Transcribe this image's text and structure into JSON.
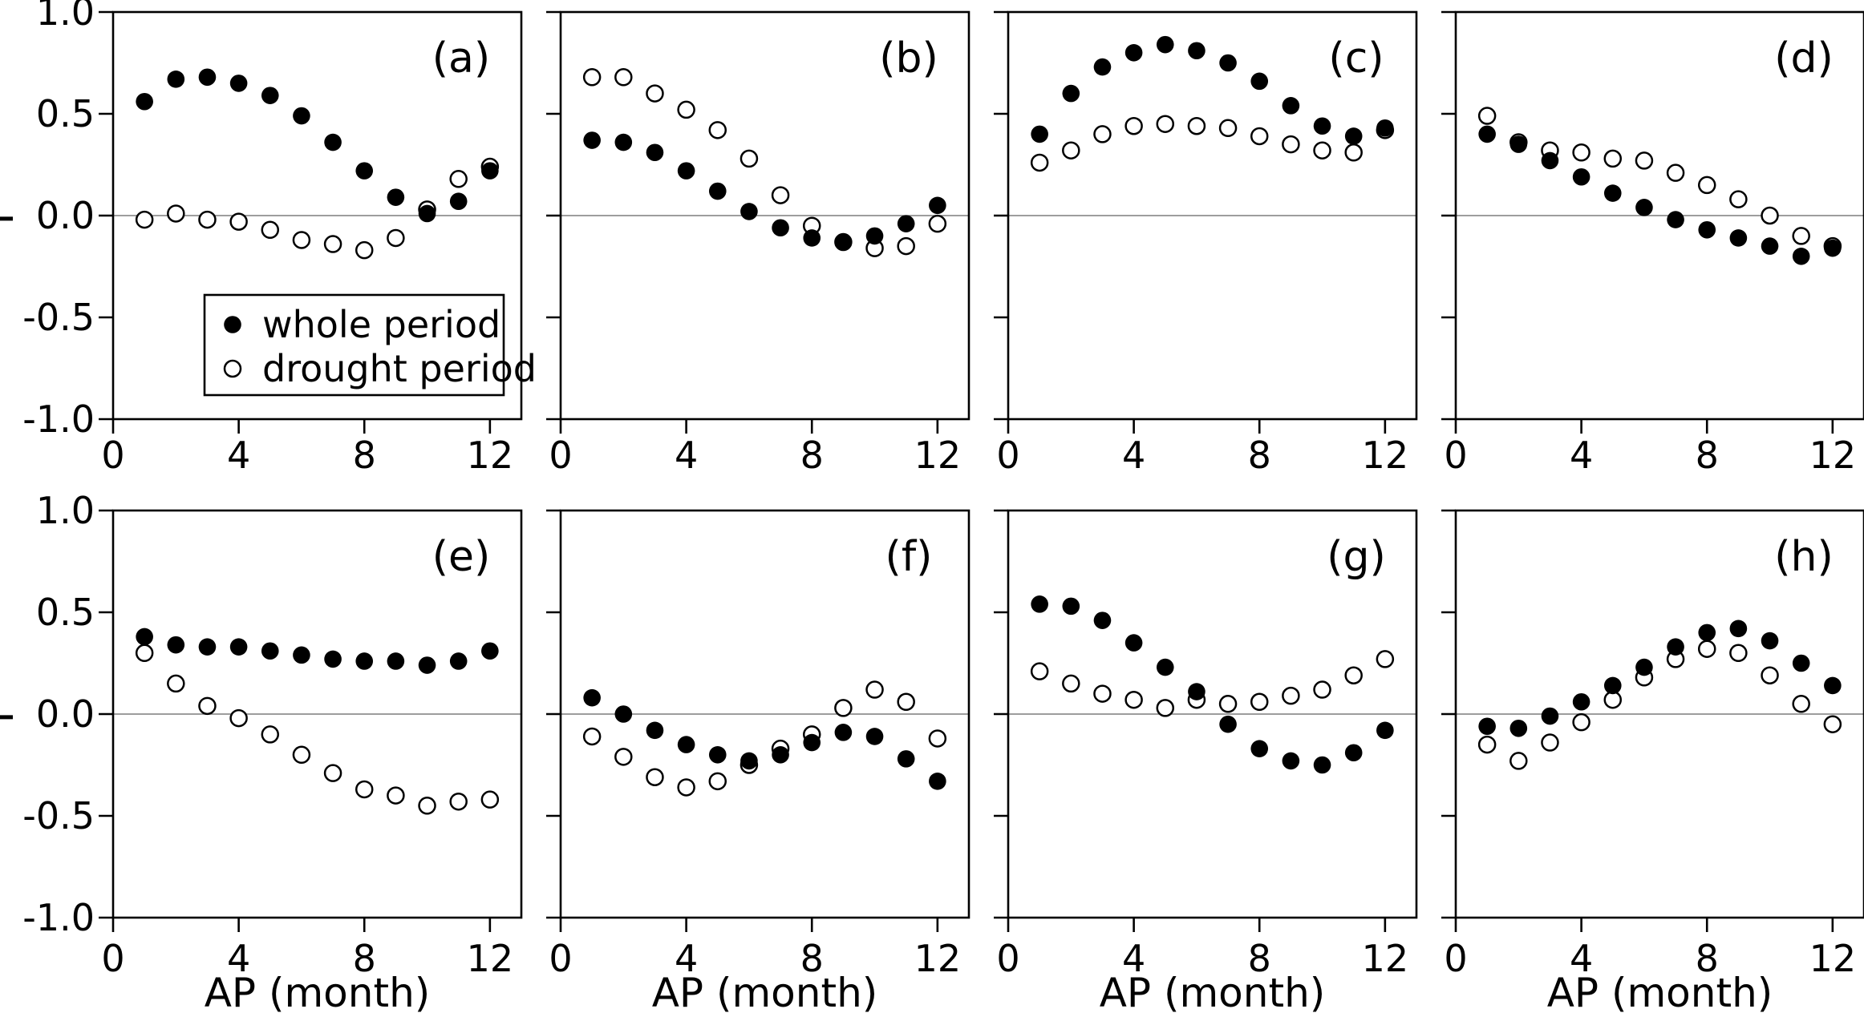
{
  "figure": {
    "rows": 2,
    "cols": 4,
    "y_axis": {
      "label": "r",
      "tick_labels": [
        "1.0",
        "0.5",
        "0.0",
        "-0.5",
        "-1.0"
      ],
      "tick_values": [
        1.0,
        0.5,
        0.0,
        -0.5,
        -1.0
      ],
      "range": [
        -1.0,
        1.0
      ]
    },
    "x_axis": {
      "label": "AP (month)",
      "tick_labels": [
        "0",
        "4",
        "8",
        "12"
      ],
      "tick_values": [
        0,
        4,
        8,
        12
      ],
      "range": [
        0,
        13
      ]
    },
    "legend": {
      "location": "inside panel (a), below zero line",
      "entries": [
        {
          "label": "whole period",
          "marker": "filled-circle"
        },
        {
          "label": "drought period",
          "marker": "open-circle"
        }
      ]
    },
    "colors": {
      "foreground": "#000000",
      "background": "#ffffff",
      "zero_line": "#7d7d7d"
    }
  },
  "chart_data": [
    {
      "type": "scatter",
      "panel": "(a)",
      "xlabel": "AP (month)",
      "ylabel": "r",
      "xlim": [
        0,
        13
      ],
      "ylim": [
        -1.0,
        1.0
      ],
      "grid": false,
      "show_legend": true,
      "x": [
        1,
        2,
        3,
        4,
        5,
        6,
        7,
        8,
        9,
        10,
        11,
        12
      ],
      "series": [
        {
          "name": "whole period",
          "marker": "filled-circle",
          "values": [
            0.56,
            0.67,
            0.68,
            0.65,
            0.59,
            0.49,
            0.36,
            0.22,
            0.09,
            0.01,
            0.07,
            0.22
          ]
        },
        {
          "name": "drought period",
          "marker": "open-circle",
          "values": [
            -0.02,
            0.01,
            -0.02,
            -0.03,
            -0.07,
            -0.12,
            -0.14,
            -0.17,
            -0.11,
            0.03,
            0.18,
            0.24
          ]
        }
      ]
    },
    {
      "type": "scatter",
      "panel": "(b)",
      "xlabel": "AP (month)",
      "ylabel": "r",
      "xlim": [
        0,
        13
      ],
      "ylim": [
        -1.0,
        1.0
      ],
      "grid": false,
      "show_legend": false,
      "x": [
        1,
        2,
        3,
        4,
        5,
        6,
        7,
        8,
        9,
        10,
        11,
        12
      ],
      "series": [
        {
          "name": "whole period",
          "marker": "filled-circle",
          "values": [
            0.37,
            0.36,
            0.31,
            0.22,
            0.12,
            0.02,
            -0.06,
            -0.11,
            -0.13,
            -0.1,
            -0.04,
            0.05
          ]
        },
        {
          "name": "drought period",
          "marker": "open-circle",
          "values": [
            0.68,
            0.68,
            0.6,
            0.52,
            0.42,
            0.28,
            0.1,
            -0.05,
            -0.13,
            -0.16,
            -0.15,
            -0.04
          ]
        }
      ]
    },
    {
      "type": "scatter",
      "panel": "(c)",
      "xlabel": "AP (month)",
      "ylabel": "r",
      "xlim": [
        0,
        13
      ],
      "ylim": [
        -1.0,
        1.0
      ],
      "grid": false,
      "show_legend": false,
      "x": [
        1,
        2,
        3,
        4,
        5,
        6,
        7,
        8,
        9,
        10,
        11,
        12
      ],
      "series": [
        {
          "name": "whole period",
          "marker": "filled-circle",
          "values": [
            0.4,
            0.6,
            0.73,
            0.8,
            0.84,
            0.81,
            0.75,
            0.66,
            0.54,
            0.44,
            0.39,
            0.43
          ]
        },
        {
          "name": "drought period",
          "marker": "open-circle",
          "values": [
            0.26,
            0.32,
            0.4,
            0.44,
            0.45,
            0.44,
            0.43,
            0.39,
            0.35,
            0.32,
            0.31,
            0.42
          ]
        }
      ]
    },
    {
      "type": "scatter",
      "panel": "(d)",
      "xlabel": "AP (month)",
      "ylabel": "r",
      "xlim": [
        0,
        13
      ],
      "ylim": [
        -1.0,
        1.0
      ],
      "grid": false,
      "show_legend": false,
      "x": [
        1,
        2,
        3,
        4,
        5,
        6,
        7,
        8,
        9,
        10,
        11,
        12
      ],
      "series": [
        {
          "name": "whole period",
          "marker": "filled-circle",
          "values": [
            0.4,
            0.35,
            0.27,
            0.19,
            0.11,
            0.04,
            -0.02,
            -0.07,
            -0.11,
            -0.15,
            -0.2,
            -0.16
          ]
        },
        {
          "name": "drought period",
          "marker": "open-circle",
          "values": [
            0.49,
            0.36,
            0.32,
            0.31,
            0.28,
            0.27,
            0.21,
            0.15,
            0.08,
            0.0,
            -0.1,
            -0.15
          ]
        }
      ]
    },
    {
      "type": "scatter",
      "panel": "(e)",
      "xlabel": "AP (month)",
      "ylabel": "r",
      "xlim": [
        0,
        13
      ],
      "ylim": [
        -1.0,
        1.0
      ],
      "grid": false,
      "show_legend": false,
      "x": [
        1,
        2,
        3,
        4,
        5,
        6,
        7,
        8,
        9,
        10,
        11,
        12
      ],
      "series": [
        {
          "name": "whole period",
          "marker": "filled-circle",
          "values": [
            0.38,
            0.34,
            0.33,
            0.33,
            0.31,
            0.29,
            0.27,
            0.26,
            0.26,
            0.24,
            0.26,
            0.31
          ]
        },
        {
          "name": "drought period",
          "marker": "open-circle",
          "values": [
            0.3,
            0.15,
            0.04,
            -0.02,
            -0.1,
            -0.2,
            -0.29,
            -0.37,
            -0.4,
            -0.45,
            -0.43,
            -0.42
          ]
        }
      ]
    },
    {
      "type": "scatter",
      "panel": "(f)",
      "xlabel": "AP (month)",
      "ylabel": "r",
      "xlim": [
        0,
        13
      ],
      "ylim": [
        -1.0,
        1.0
      ],
      "grid": false,
      "show_legend": false,
      "x": [
        1,
        2,
        3,
        4,
        5,
        6,
        7,
        8,
        9,
        10,
        11,
        12
      ],
      "series": [
        {
          "name": "whole period",
          "marker": "filled-circle",
          "values": [
            0.08,
            0.0,
            -0.08,
            -0.15,
            -0.2,
            -0.23,
            -0.2,
            -0.14,
            -0.09,
            -0.11,
            -0.22,
            -0.33
          ]
        },
        {
          "name": "drought period",
          "marker": "open-circle",
          "values": [
            -0.11,
            -0.21,
            -0.31,
            -0.36,
            -0.33,
            -0.25,
            -0.17,
            -0.1,
            0.03,
            0.12,
            0.06,
            -0.12
          ]
        }
      ]
    },
    {
      "type": "scatter",
      "panel": "(g)",
      "xlabel": "AP (month)",
      "ylabel": "r",
      "xlim": [
        0,
        13
      ],
      "ylim": [
        -1.0,
        1.0
      ],
      "grid": false,
      "show_legend": false,
      "x": [
        1,
        2,
        3,
        4,
        5,
        6,
        7,
        8,
        9,
        10,
        11,
        12
      ],
      "series": [
        {
          "name": "whole period",
          "marker": "filled-circle",
          "values": [
            0.54,
            0.53,
            0.46,
            0.35,
            0.23,
            0.11,
            -0.05,
            -0.17,
            -0.23,
            -0.25,
            -0.19,
            -0.08
          ]
        },
        {
          "name": "drought period",
          "marker": "open-circle",
          "values": [
            0.21,
            0.15,
            0.1,
            0.07,
            0.03,
            0.07,
            0.05,
            0.06,
            0.09,
            0.12,
            0.19,
            0.27
          ]
        }
      ]
    },
    {
      "type": "scatter",
      "panel": "(h)",
      "xlabel": "AP (month)",
      "ylabel": "r",
      "xlim": [
        0,
        13
      ],
      "ylim": [
        -1.0,
        1.0
      ],
      "grid": false,
      "show_legend": false,
      "x": [
        1,
        2,
        3,
        4,
        5,
        6,
        7,
        8,
        9,
        10,
        11,
        12
      ],
      "series": [
        {
          "name": "whole period",
          "marker": "filled-circle",
          "values": [
            -0.06,
            -0.07,
            -0.01,
            0.06,
            0.14,
            0.23,
            0.33,
            0.4,
            0.42,
            0.36,
            0.25,
            0.14
          ]
        },
        {
          "name": "drought period",
          "marker": "open-circle",
          "values": [
            -0.15,
            -0.23,
            -0.14,
            -0.04,
            0.07,
            0.18,
            0.27,
            0.32,
            0.3,
            0.19,
            0.05,
            -0.05
          ]
        }
      ]
    }
  ]
}
